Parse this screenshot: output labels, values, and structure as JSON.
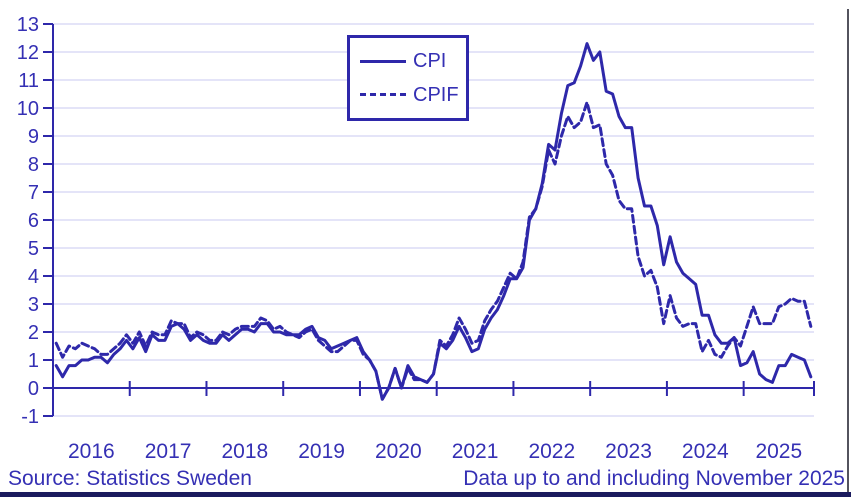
{
  "chart_data": {
    "type": "line",
    "title": "",
    "xlabel": "",
    "ylabel": "",
    "x_start": "2016-01",
    "x_end": "2025-11",
    "ylim": [
      -1,
      13
    ],
    "grid": true,
    "legend_position": "top-center",
    "y_ticks": [
      13,
      12,
      11,
      10,
      9,
      8,
      7,
      6,
      5,
      4,
      3,
      2,
      1,
      0,
      -1
    ],
    "x_tick_labels": [
      "2016",
      "2017",
      "2018",
      "2019",
      "2020",
      "2021",
      "2022",
      "2023",
      "2024",
      "2025"
    ],
    "months_per_year": 12,
    "series": [
      {
        "name": "CPI",
        "style": "solid",
        "values": [
          0.8,
          0.4,
          0.8,
          0.8,
          1.0,
          1.0,
          1.1,
          1.1,
          0.9,
          1.2,
          1.4,
          1.7,
          1.4,
          1.8,
          1.3,
          1.9,
          1.7,
          1.7,
          2.2,
          2.3,
          2.1,
          1.7,
          1.9,
          1.7,
          1.6,
          1.6,
          1.9,
          1.7,
          1.9,
          2.1,
          2.1,
          2.0,
          2.3,
          2.3,
          2.0,
          2.0,
          1.9,
          1.9,
          1.9,
          2.1,
          2.2,
          1.8,
          1.7,
          1.4,
          1.5,
          1.6,
          1.7,
          1.8,
          1.3,
          1.0,
          0.6,
          -0.4,
          0.0,
          0.7,
          0.0,
          0.8,
          0.4,
          0.3,
          0.2,
          0.5,
          1.6,
          1.4,
          1.7,
          2.2,
          1.8,
          1.3,
          1.4,
          2.1,
          2.5,
          2.8,
          3.3,
          3.9,
          3.9,
          4.3,
          6.0,
          6.4,
          7.3,
          8.7,
          8.5,
          9.8,
          10.8,
          10.9,
          11.5,
          12.3,
          11.7,
          12.0,
          10.6,
          10.5,
          9.7,
          9.3,
          9.3,
          7.5,
          6.5,
          6.5,
          5.8,
          4.4,
          5.4,
          4.5,
          4.1,
          3.9,
          3.7,
          2.6,
          2.6,
          1.9,
          1.6,
          1.6,
          1.8,
          0.8,
          0.9,
          1.3,
          0.5,
          0.3,
          0.2,
          0.8,
          0.8,
          1.2,
          1.1,
          1.0,
          0.4
        ]
      },
      {
        "name": "CPIF",
        "style": "dashed",
        "values": [
          1.6,
          1.1,
          1.5,
          1.4,
          1.6,
          1.5,
          1.4,
          1.2,
          1.2,
          1.4,
          1.6,
          1.9,
          1.6,
          2.0,
          1.5,
          2.0,
          1.9,
          1.9,
          2.4,
          2.3,
          2.3,
          1.8,
          2.0,
          1.9,
          1.7,
          1.7,
          2.0,
          1.9,
          2.1,
          2.2,
          2.2,
          2.2,
          2.5,
          2.4,
          2.1,
          2.2,
          2.0,
          1.9,
          1.8,
          2.0,
          2.1,
          1.7,
          1.5,
          1.3,
          1.3,
          1.5,
          1.7,
          1.7,
          1.2,
          1.0,
          0.6,
          -0.4,
          0.0,
          0.7,
          0.0,
          0.7,
          0.3,
          0.3,
          0.2,
          0.5,
          1.7,
          1.5,
          1.9,
          2.5,
          2.1,
          1.6,
          1.7,
          2.4,
          2.8,
          3.1,
          3.6,
          4.1,
          3.9,
          4.5,
          6.1,
          6.4,
          7.2,
          8.5,
          8.0,
          9.0,
          9.7,
          9.3,
          9.5,
          10.2,
          9.3,
          9.4,
          8.0,
          7.6,
          6.7,
          6.4,
          6.4,
          4.7,
          4.0,
          4.2,
          3.6,
          2.3,
          3.3,
          2.5,
          2.2,
          2.3,
          2.3,
          1.3,
          1.7,
          1.2,
          1.1,
          1.5,
          1.8,
          1.5,
          2.2,
          2.9,
          2.3,
          2.3,
          2.3,
          2.9,
          3.0,
          3.2,
          3.1,
          3.1,
          2.2
        ]
      }
    ]
  },
  "legend": {
    "items": [
      {
        "label": "CPI"
      },
      {
        "label": "CPIF"
      }
    ]
  },
  "footer": {
    "source": "Source: Statistics Sweden",
    "data_note": "Data up to and including November 2025"
  },
  "colors": {
    "line": "#2e28aa",
    "axis": "#2e28aa",
    "text": "#3530b4",
    "grid": "#c9c8f0",
    "bottom_bar": "#1b1b5e",
    "right_edge": "#53535e"
  }
}
